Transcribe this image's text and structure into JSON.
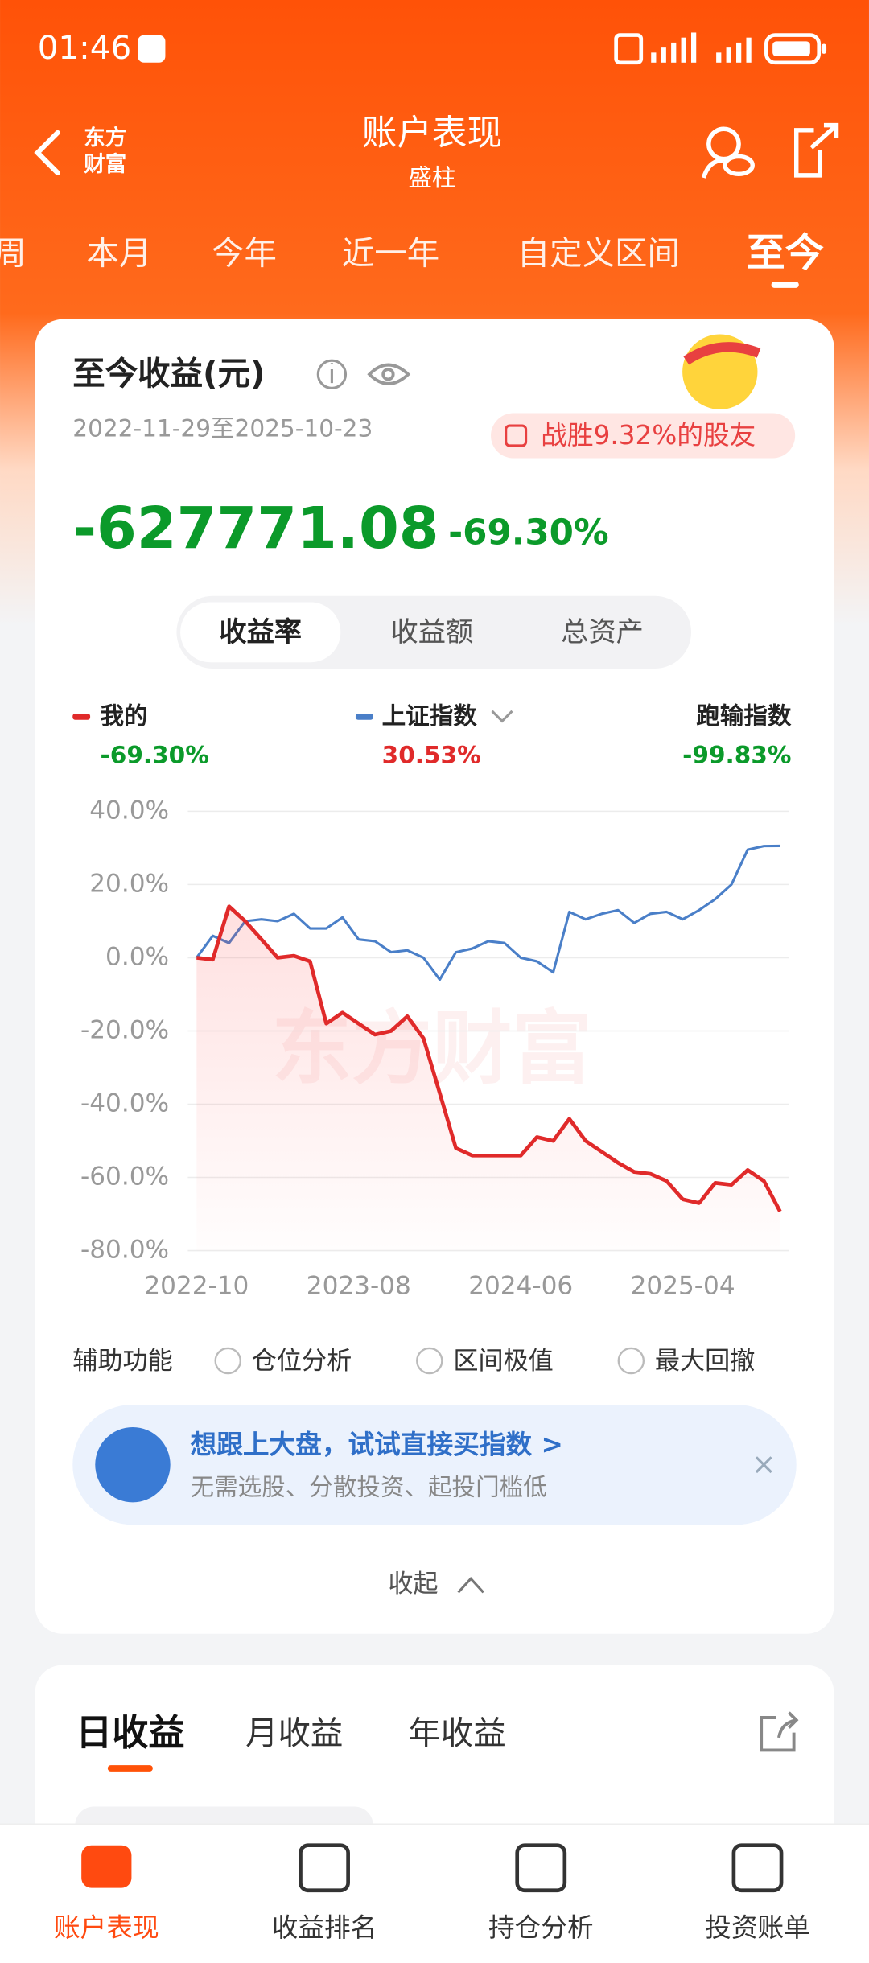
{
  "status_bar": {
    "time": "01:46"
  },
  "header": {
    "logo_lines": [
      "东方",
      "财富"
    ],
    "title": "账户表现",
    "subtitle": "盛柱"
  },
  "tabs": {
    "items": [
      "周",
      "本月",
      "今年",
      "近一年",
      "自定义区间",
      "至今"
    ],
    "active": 5
  },
  "summary": {
    "title": "至今收益(元)",
    "date_range": "2022-11-29至2025-10-23",
    "badge": "战胜9.32%的股友",
    "amount": "-627771.08",
    "rate": "-69.30%"
  },
  "toggle": {
    "items": [
      "收益率",
      "收益额",
      "总资产"
    ],
    "active": 0
  },
  "legend": [
    {
      "name": "我的",
      "value": "-69.30%"
    },
    {
      "name": "上证指数",
      "value": "30.53%"
    },
    {
      "name": "跑输指数",
      "value": "-99.83%"
    }
  ],
  "chart_data": {
    "type": "line",
    "watermark": "东方财富",
    "categories": [
      "2022-10",
      null,
      null,
      null,
      null,
      null,
      null,
      null,
      null,
      null,
      "2023-08",
      null,
      null,
      null,
      null,
      null,
      null,
      null,
      null,
      null,
      "2024-06",
      null,
      null,
      null,
      null,
      null,
      null,
      null,
      null,
      null,
      "2025-04",
      null,
      null,
      null,
      null,
      null,
      null
    ],
    "series": [
      {
        "name": "我的",
        "color": "#e02a2a",
        "values": [
          0,
          -0.5,
          14,
          10,
          5,
          0,
          0.5,
          -1,
          -18,
          -15,
          -18,
          -21,
          -20,
          -16,
          -22,
          -37,
          -52,
          -54,
          -54,
          -54,
          -54,
          -49,
          -50,
          -44,
          -50,
          -53,
          -56,
          -58.5,
          -59,
          -61,
          -66,
          -67,
          -61.5,
          -62,
          -58,
          -61,
          -69.3
        ]
      },
      {
        "name": "上证指数",
        "color": "#4a7fc8",
        "values": [
          0,
          6,
          4,
          10,
          10.5,
          10,
          12,
          8,
          8,
          11,
          5,
          4.5,
          1.5,
          2,
          0,
          -6,
          1.5,
          2.5,
          4.5,
          4,
          0,
          -1,
          -4,
          12.5,
          10.5,
          12,
          13,
          9.5,
          12,
          12.5,
          10.5,
          13,
          16,
          20,
          29.5,
          30.5,
          30.53
        ]
      }
    ],
    "ylim": [
      -80,
      40
    ],
    "yticks": [
      {
        "value": -80,
        "label": "-80.0%"
      },
      {
        "value": -60,
        "label": "-60.0%"
      },
      {
        "value": -40,
        "label": "-40.0%"
      },
      {
        "value": -20,
        "label": "-20.0%"
      },
      {
        "value": 0,
        "label": "0.0%"
      },
      {
        "value": 20,
        "label": "20.0%"
      },
      {
        "value": 40,
        "label": "40.0%"
      }
    ],
    "grid": true
  },
  "aux": {
    "label": "辅助功能",
    "options": [
      "仓位分析",
      "区间极值",
      "最大回撤"
    ]
  },
  "promo": {
    "title": "想跟上大盘，试试直接买指数 >",
    "subtitle": "无需选股、分散投资、起投门槛低"
  },
  "collapse": "收起",
  "earnings_tabs": {
    "items": [
      "日收益",
      "月收益",
      "年收益"
    ],
    "active": 0
  },
  "bottom_nav": {
    "items": [
      "账户表现",
      "收益排名",
      "持仓分析",
      "投资账单"
    ],
    "active": 0
  }
}
